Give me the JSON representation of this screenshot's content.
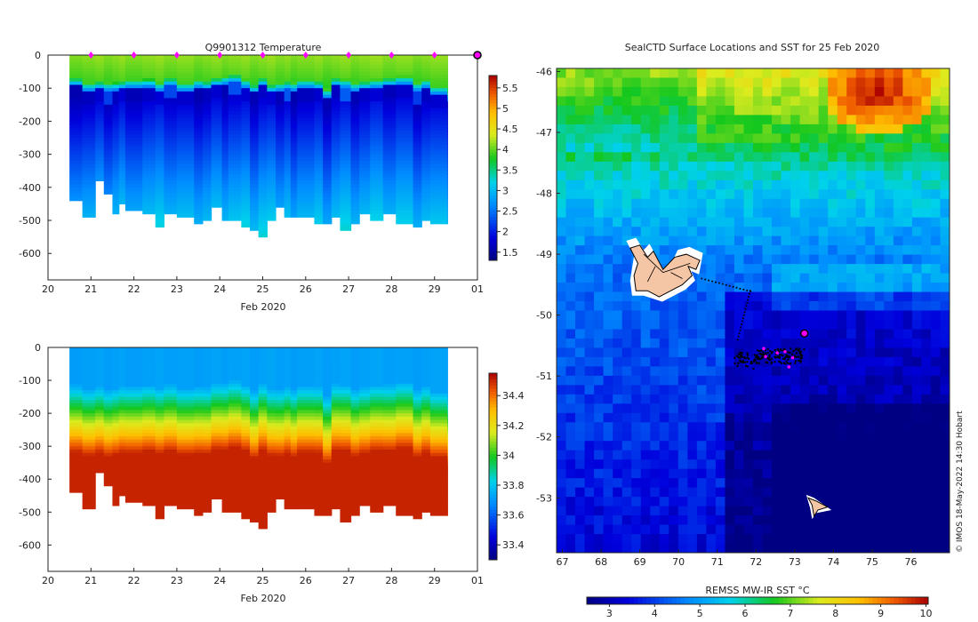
{
  "colors": {
    "axis": "#222222",
    "marker": "#ff00ff",
    "land": "#f5c6a5",
    "track": "#000000"
  },
  "chart_data": [
    {
      "id": "temperature",
      "type": "heatmap",
      "title": "Q9901312  Temperature",
      "xlabel": "Feb 2020",
      "x_ticks": [
        "20",
        "21",
        "22",
        "23",
        "24",
        "25",
        "26",
        "27",
        "28",
        "29",
        "01"
      ],
      "y_ticks": [
        "0",
        "-100",
        "-200",
        "-300",
        "-400",
        "-500",
        "-600"
      ],
      "xlim": [
        20,
        30
      ],
      "ylim": [
        -680,
        0
      ],
      "profile_days": [
        20.5,
        20.8,
        21.1,
        21.3,
        21.5,
        21.65,
        21.8,
        22.2,
        22.5,
        22.7,
        23.0,
        23.4,
        23.6,
        23.8,
        24.05,
        24.2,
        24.5,
        24.7,
        24.9,
        25.1,
        25.3,
        25.5,
        25.65,
        25.8,
        26.2,
        26.4,
        26.6,
        26.8,
        27.05,
        27.25,
        27.5,
        27.8,
        28.1,
        28.5,
        28.7,
        28.9,
        29.3
      ],
      "profile_depths": [
        440,
        485,
        380,
        420,
        480,
        445,
        465,
        475,
        515,
        475,
        485,
        505,
        495,
        460,
        495,
        500,
        520,
        530,
        545,
        500,
        460,
        490,
        485,
        490,
        510,
        505,
        485,
        530,
        505,
        480,
        500,
        480,
        505,
        515,
        500,
        505,
        505
      ],
      "mixed_layer_depths": [
        95,
        110,
        105,
        110,
        108,
        105,
        100,
        98,
        110,
        95,
        110,
        100,
        105,
        95,
        90,
        85,
        100,
        115,
        95,
        115,
        110,
        105,
        110,
        100,
        105,
        130,
        95,
        100,
        110,
        105,
        100,
        95,
        90,
        110,
        100,
        120,
        140
      ],
      "surface_markers": [
        21,
        22,
        23,
        24,
        25,
        26,
        27,
        28,
        29
      ],
      "current_marker": 30,
      "colorbar": {
        "ticks": [
          "1.5",
          "2",
          "2.5",
          "3",
          "3.5",
          "4",
          "4.5",
          "5",
          "5.5"
        ],
        "vmin": 1.3,
        "vmax": 5.8
      }
    },
    {
      "id": "salinity",
      "type": "heatmap",
      "title": "",
      "xlabel": "Feb 2020",
      "x_ticks": [
        "20",
        "21",
        "22",
        "23",
        "24",
        "25",
        "26",
        "27",
        "28",
        "29",
        "01"
      ],
      "y_ticks": [
        "0",
        "-100",
        "-200",
        "-300",
        "-400",
        "-500",
        "-600"
      ],
      "xlim": [
        20,
        30
      ],
      "ylim": [
        -680,
        0
      ],
      "colorbar": {
        "ticks": [
          "33.4",
          "33.6",
          "33.8",
          "34",
          "34.2",
          "34.4"
        ],
        "vmin": 33.3,
        "vmax": 34.55
      }
    },
    {
      "id": "sst_map",
      "type": "heatmap",
      "title": "SealCTD Surface Locations and SST for 25 Feb 2020",
      "x_ticks": [
        "67",
        "68",
        "69",
        "70",
        "71",
        "72",
        "73",
        "74",
        "75",
        "76"
      ],
      "y_ticks": [
        "-46",
        "-47",
        "-48",
        "-49",
        "-50",
        "-51",
        "-52",
        "-53"
      ],
      "lon_range": [
        66.85,
        77.0
      ],
      "lat_range": [
        -53.9,
        -45.95
      ],
      "current_position": [
        73.25,
        -50.3
      ],
      "colorbar": {
        "label": "REMSS MW-IR SST °C",
        "ticks": [
          "3",
          "4",
          "5",
          "6",
          "7",
          "8",
          "9",
          "10"
        ],
        "vmin": 2.5,
        "vmax": 10.05
      }
    }
  ],
  "credit": "© IMOS 18-May-2022 14:30 Hobart"
}
